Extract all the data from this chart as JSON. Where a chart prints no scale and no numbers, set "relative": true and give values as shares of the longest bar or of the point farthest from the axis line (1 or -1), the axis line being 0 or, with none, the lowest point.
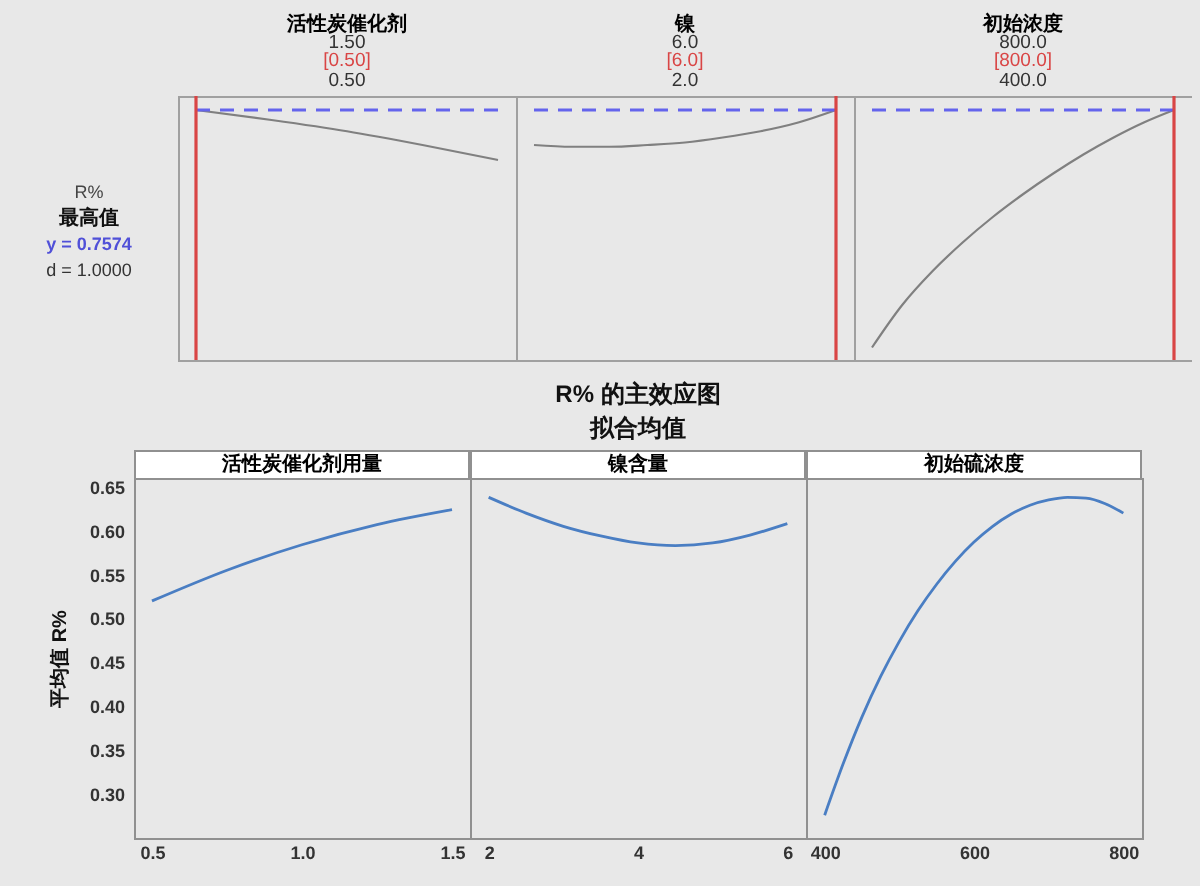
{
  "chart_data": [
    {
      "type": "other",
      "title": "R%",
      "annotations": [
        "最高值",
        "y = 0.7574",
        "d = 1.0000"
      ]
    },
    {
      "type": "line",
      "title": "活性炭催化剂",
      "annotations": [
        "1.50",
        "[0.50]",
        "0.50"
      ],
      "relative": true,
      "tick_labels": false,
      "categories": [
        null,
        null,
        null,
        null,
        null
      ],
      "series": [
        {
          "color": "#808080",
          "values": [
            1.0,
            0.96,
            0.915,
            0.86,
            0.8
          ]
        },
        {
          "color": "#6464ec",
          "line_style": "dashed",
          "values": [
            1,
            1,
            1,
            1,
            1
          ]
        }
      ]
    },
    {
      "type": "line",
      "title": "镍",
      "annotations": [
        "6.0",
        "[6.0]",
        "2.0"
      ],
      "relative": true,
      "tick_labels": false,
      "categories": [
        null,
        null,
        null,
        null,
        null,
        null,
        null,
        null,
        null
      ],
      "series": [
        {
          "color": "#808080",
          "values": [
            0.86,
            0.853,
            0.853,
            0.86,
            0.87,
            0.89,
            0.915,
            0.95,
            1.0
          ]
        },
        {
          "color": "#6464ec",
          "line_style": "dashed",
          "values": [
            1,
            1,
            1,
            1,
            1,
            1,
            1,
            1,
            1
          ]
        }
      ]
    },
    {
      "type": "line",
      "title": "初始浓度",
      "annotations": [
        "800.0",
        "[800.0]",
        "400.0"
      ],
      "relative": true,
      "tick_labels": false,
      "categories": [
        null,
        null,
        null,
        null,
        null,
        null,
        null,
        null,
        null,
        null,
        null
      ],
      "series": [
        {
          "color": "#808080",
          "values": [
            0.05,
            0.22,
            0.355,
            0.47,
            0.572,
            0.663,
            0.746,
            0.822,
            0.89,
            0.95,
            1.0
          ]
        },
        {
          "color": "#6464ec",
          "line_style": "dashed",
          "values": [
            1,
            1,
            1,
            1,
            1,
            1,
            1,
            1,
            1,
            1,
            1
          ]
        }
      ]
    },
    {
      "type": "other",
      "title": "R% 的主效应图",
      "subtitle": "拟合均值"
    },
    {
      "type": "line",
      "title": "活性炭催化剂用量",
      "ylabel": "平均值 R%",
      "xlim": [
        0.44,
        1.56
      ],
      "xticks": [
        0.5,
        {
          "value": 1,
          "label": "1.0"
        },
        1.5
      ],
      "ylim": [
        0.25,
        0.66
      ],
      "yticks": [
        {
          "value": 0.3,
          "label": "0.30"
        },
        0.35,
        {
          "value": 0.4,
          "label": "0.40"
        },
        0.45,
        {
          "value": 0.5,
          "label": "0.50"
        },
        0.55,
        {
          "value": 0.6,
          "label": "0.60"
        },
        0.65
      ],
      "x": [
        0.5,
        0.75,
        1.0,
        1.25,
        1.5
      ],
      "values": [
        0.52,
        0.555,
        0.584,
        0.607,
        0.624
      ],
      "color": "#4a7ec3"
    },
    {
      "type": "line",
      "title": "镍含量",
      "tick_labels": "x",
      "xlim": [
        1.75,
        6.25
      ],
      "xticks": [
        2,
        4,
        6
      ],
      "ylim": [
        0.25,
        0.66
      ],
      "x": [
        2,
        2.5,
        3,
        3.5,
        4,
        4.5,
        5,
        5.5,
        6
      ],
      "values": [
        0.638,
        0.62,
        0.605,
        0.594,
        0.586,
        0.583,
        0.586,
        0.595,
        0.608
      ],
      "color": "#4a7ec3"
    },
    {
      "type": "line",
      "title": "初始硫浓度",
      "tick_labels": "x",
      "xlim": [
        375,
        825
      ],
      "xticks": [
        400,
        600,
        800
      ],
      "ylim": [
        0.25,
        0.66
      ],
      "x": [
        400,
        425,
        450,
        475,
        500,
        525,
        550,
        575,
        600,
        625,
        650,
        675,
        700,
        725,
        750,
        775,
        800
      ],
      "values": [
        0.276,
        0.335,
        0.388,
        0.434,
        0.474,
        0.509,
        0.539,
        0.565,
        0.587,
        0.605,
        0.619,
        0.629,
        0.635,
        0.638,
        0.637,
        0.631,
        0.62
      ],
      "color": "#4a7ec3"
    }
  ]
}
